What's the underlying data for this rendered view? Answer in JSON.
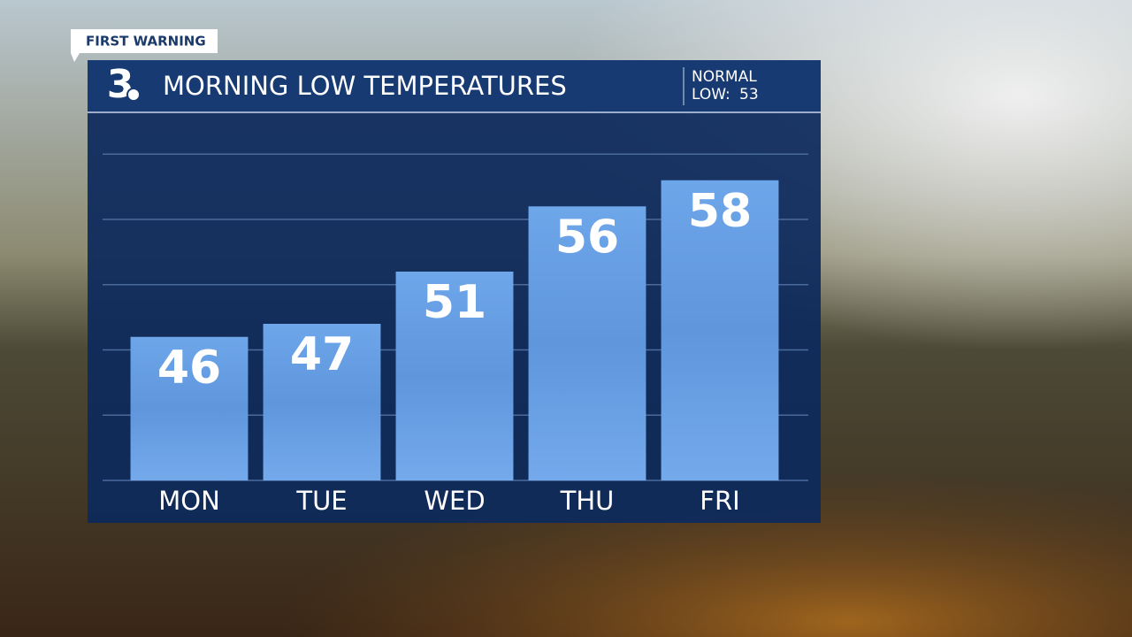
{
  "chart_data": {
    "type": "bar",
    "title": "MORNING LOW TEMPERATURES",
    "badge": "FIRST WARNING",
    "logo": "3",
    "normal_label": "NORMAL",
    "normal_low_label": "LOW:",
    "normal_low": 53,
    "categories": [
      "MON",
      "TUE",
      "WED",
      "THU",
      "FRI"
    ],
    "values": [
      46,
      47,
      51,
      56,
      58
    ],
    "color": "#6ea6ea",
    "ylim": [
      35,
      63
    ],
    "yticks": [
      35,
      40,
      45,
      50,
      55,
      60
    ],
    "grid": true
  }
}
